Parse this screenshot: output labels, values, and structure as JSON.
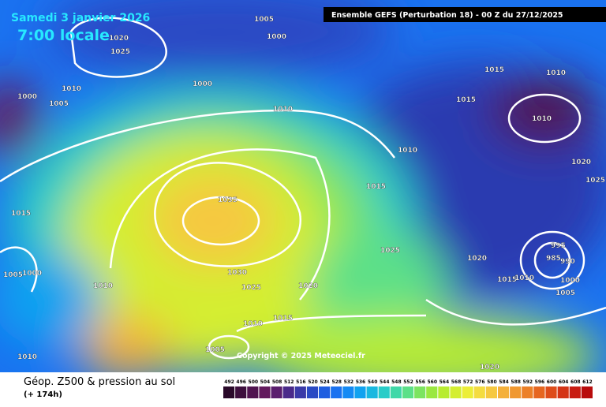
{
  "header": {
    "date": "Samedi 3 janvier 2026",
    "time": "7:00 locale",
    "run": "Ensemble GEFS  (Perturbation 18)  -  00 Z du 27/12/2025"
  },
  "copyright": "Copyright © 2025 Meteociel.fr",
  "footer": {
    "title": "Géop. Z500 & pression au sol",
    "lead": "(+ 174h)"
  },
  "isobar_labels": [
    "1005",
    "1020",
    "1000",
    "1025",
    "1010",
    "1000",
    "1005",
    "1000",
    "1010",
    "1015",
    "1010",
    "1015",
    "1010",
    "1010",
    "1020",
    "1025",
    "1015",
    "1015",
    "1035",
    "1025",
    "1020",
    "995",
    "985",
    "990",
    "1030",
    "1025",
    "1020",
    "1010",
    "1005",
    "1000",
    "1015",
    "1010",
    "1000",
    "1005",
    "1015",
    "1010",
    "1005",
    "1010",
    "1020"
  ],
  "legend": {
    "levels": [
      492,
      496,
      500,
      504,
      508,
      512,
      516,
      520,
      524,
      528,
      532,
      536,
      540,
      544,
      548,
      552,
      556,
      560,
      564,
      568,
      572,
      576,
      580,
      584,
      588,
      592,
      596,
      600,
      604,
      608,
      612
    ],
    "colors": [
      "#2a0a2a",
      "#3d0f3d",
      "#501450",
      "#631a5e",
      "#5a1e6e",
      "#4a2a8a",
      "#3a3aa8",
      "#2a4ac4",
      "#1f5ee0",
      "#1a72f0",
      "#148af4",
      "#10a2f0",
      "#18b8e0",
      "#28ccc8",
      "#40d8a8",
      "#5ce088",
      "#7ce460",
      "#9ae840",
      "#b8ec30",
      "#d4ee30",
      "#ecee38",
      "#f4dc40",
      "#f6c840",
      "#f4b03a",
      "#f09830",
      "#ec8028",
      "#e66620",
      "#de4c1a",
      "#d43416",
      "#c81c12",
      "#b80c0c"
    ]
  }
}
